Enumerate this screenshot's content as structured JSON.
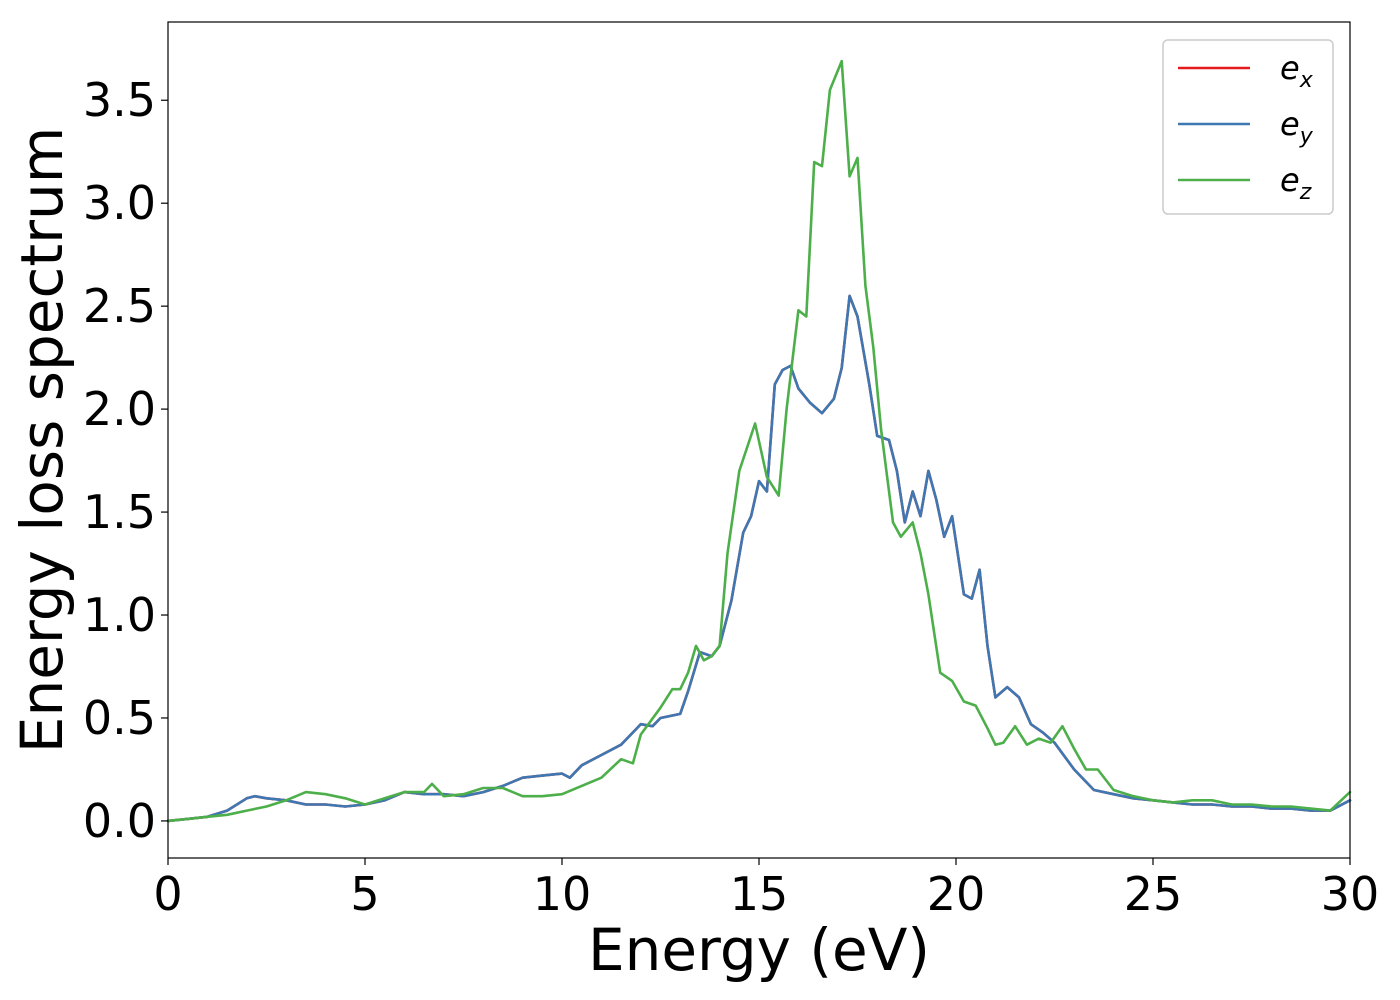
{
  "chart_data": {
    "type": "line",
    "title": "",
    "xlabel": "Energy (eV)",
    "ylabel": "Energy loss spectrum",
    "xlim": [
      0,
      30
    ],
    "ylim": [
      -0.18,
      3.88
    ],
    "xticks": [
      0,
      5,
      10,
      15,
      20,
      25,
      30
    ],
    "xtick_labels": [
      "0",
      "5",
      "10",
      "15",
      "20",
      "25",
      "30"
    ],
    "yticks": [
      0.0,
      0.5,
      1.0,
      1.5,
      2.0,
      2.5,
      3.0,
      3.5
    ],
    "ytick_labels": [
      "0.0",
      "0.5",
      "1.0",
      "1.5",
      "2.0",
      "2.5",
      "3.0",
      "3.5"
    ],
    "grid": false,
    "legend": {
      "placement": "top-right"
    },
    "series": [
      {
        "name": "e_x",
        "label_main": "e",
        "label_sub": "x",
        "color": "#e41a1c",
        "x": [
          0,
          0.5,
          1,
          1.5,
          2,
          2.2,
          2.5,
          3,
          3.5,
          4,
          4.5,
          5,
          5.5,
          6,
          6.5,
          7,
          7.5,
          8,
          8.5,
          9,
          9.5,
          10,
          10.2,
          10.5,
          11,
          11.5,
          12,
          12.3,
          12.5,
          13,
          13.2,
          13.5,
          13.8,
          14,
          14.3,
          14.6,
          14.8,
          15,
          15.2,
          15.4,
          15.6,
          15.8,
          16,
          16.3,
          16.6,
          16.9,
          17.1,
          17.3,
          17.5,
          17.8,
          18,
          18.3,
          18.5,
          18.7,
          18.9,
          19.1,
          19.3,
          19.5,
          19.7,
          19.9,
          20.2,
          20.4,
          20.6,
          20.8,
          21,
          21.3,
          21.6,
          21.9,
          22.2,
          22.5,
          23,
          23.5,
          24,
          24.5,
          25,
          25.5,
          26,
          26.5,
          27,
          27.5,
          28,
          28.5,
          29,
          29.5,
          30
        ],
        "y": [
          0,
          0.01,
          0.02,
          0.05,
          0.11,
          0.12,
          0.11,
          0.1,
          0.08,
          0.08,
          0.07,
          0.08,
          0.1,
          0.14,
          0.13,
          0.13,
          0.12,
          0.14,
          0.17,
          0.21,
          0.22,
          0.23,
          0.21,
          0.27,
          0.32,
          0.37,
          0.47,
          0.46,
          0.5,
          0.52,
          0.63,
          0.82,
          0.8,
          0.85,
          1.07,
          1.4,
          1.48,
          1.65,
          1.6,
          2.12,
          2.19,
          2.21,
          2.1,
          2.03,
          1.98,
          2.05,
          2.2,
          2.55,
          2.45,
          2.12,
          1.87,
          1.85,
          1.7,
          1.45,
          1.6,
          1.48,
          1.7,
          1.56,
          1.38,
          1.48,
          1.1,
          1.08,
          1.22,
          0.85,
          0.6,
          0.65,
          0.6,
          0.47,
          0.43,
          0.38,
          0.25,
          0.15,
          0.13,
          0.11,
          0.1,
          0.09,
          0.08,
          0.08,
          0.07,
          0.07,
          0.06,
          0.06,
          0.05,
          0.05,
          0.1
        ]
      },
      {
        "name": "e_y",
        "label_main": "e",
        "label_sub": "y",
        "color": "#3e78b2",
        "x": [
          0,
          0.5,
          1,
          1.5,
          2,
          2.2,
          2.5,
          3,
          3.5,
          4,
          4.5,
          5,
          5.5,
          6,
          6.5,
          7,
          7.5,
          8,
          8.5,
          9,
          9.5,
          10,
          10.2,
          10.5,
          11,
          11.5,
          12,
          12.3,
          12.5,
          13,
          13.2,
          13.5,
          13.8,
          14,
          14.3,
          14.6,
          14.8,
          15,
          15.2,
          15.4,
          15.6,
          15.8,
          16,
          16.3,
          16.6,
          16.9,
          17.1,
          17.3,
          17.5,
          17.8,
          18,
          18.3,
          18.5,
          18.7,
          18.9,
          19.1,
          19.3,
          19.5,
          19.7,
          19.9,
          20.2,
          20.4,
          20.6,
          20.8,
          21,
          21.3,
          21.6,
          21.9,
          22.2,
          22.5,
          23,
          23.5,
          24,
          24.5,
          25,
          25.5,
          26,
          26.5,
          27,
          27.5,
          28,
          28.5,
          29,
          29.5,
          30
        ],
        "y": [
          0,
          0.01,
          0.02,
          0.05,
          0.11,
          0.12,
          0.11,
          0.1,
          0.08,
          0.08,
          0.07,
          0.08,
          0.1,
          0.14,
          0.13,
          0.13,
          0.12,
          0.14,
          0.17,
          0.21,
          0.22,
          0.23,
          0.21,
          0.27,
          0.32,
          0.37,
          0.47,
          0.46,
          0.5,
          0.52,
          0.63,
          0.82,
          0.8,
          0.85,
          1.07,
          1.4,
          1.48,
          1.65,
          1.6,
          2.12,
          2.19,
          2.21,
          2.1,
          2.03,
          1.98,
          2.05,
          2.2,
          2.55,
          2.45,
          2.12,
          1.87,
          1.85,
          1.7,
          1.45,
          1.6,
          1.48,
          1.7,
          1.56,
          1.38,
          1.48,
          1.1,
          1.08,
          1.22,
          0.85,
          0.6,
          0.65,
          0.6,
          0.47,
          0.43,
          0.38,
          0.25,
          0.15,
          0.13,
          0.11,
          0.1,
          0.09,
          0.08,
          0.08,
          0.07,
          0.07,
          0.06,
          0.06,
          0.05,
          0.05,
          0.1
        ]
      },
      {
        "name": "e_z",
        "label_main": "e",
        "label_sub": "z",
        "color": "#4daf4a",
        "x": [
          0,
          0.5,
          1,
          1.5,
          2,
          2.5,
          3,
          3.5,
          4,
          4.5,
          5,
          5.5,
          6,
          6.5,
          6.7,
          7,
          7.5,
          8,
          8.5,
          9,
          9.5,
          10,
          10.5,
          11,
          11.5,
          11.8,
          12,
          12.5,
          12.8,
          13,
          13.2,
          13.4,
          13.6,
          13.8,
          14,
          14.2,
          14.5,
          14.9,
          15.2,
          15.5,
          15.7,
          16,
          16.2,
          16.4,
          16.6,
          16.8,
          17.1,
          17.3,
          17.5,
          17.7,
          17.9,
          18.1,
          18.4,
          18.6,
          18.9,
          19.1,
          19.3,
          19.6,
          19.9,
          20.2,
          20.5,
          20.8,
          21,
          21.2,
          21.5,
          21.8,
          22.1,
          22.4,
          22.7,
          23,
          23.3,
          23.6,
          24,
          24.5,
          25,
          25.5,
          26,
          26.5,
          27,
          27.5,
          28,
          28.5,
          29,
          29.5,
          30
        ],
        "y": [
          0,
          0.01,
          0.02,
          0.03,
          0.05,
          0.07,
          0.1,
          0.14,
          0.13,
          0.11,
          0.08,
          0.11,
          0.14,
          0.14,
          0.18,
          0.12,
          0.13,
          0.16,
          0.16,
          0.12,
          0.12,
          0.13,
          0.17,
          0.21,
          0.3,
          0.28,
          0.42,
          0.55,
          0.64,
          0.64,
          0.72,
          0.85,
          0.78,
          0.8,
          0.85,
          1.3,
          1.7,
          1.93,
          1.67,
          1.58,
          2.0,
          2.48,
          2.45,
          3.2,
          3.18,
          3.55,
          3.69,
          3.13,
          3.22,
          2.6,
          2.3,
          1.9,
          1.45,
          1.38,
          1.45,
          1.3,
          1.1,
          0.72,
          0.68,
          0.58,
          0.56,
          0.45,
          0.37,
          0.38,
          0.46,
          0.37,
          0.4,
          0.38,
          0.46,
          0.35,
          0.25,
          0.25,
          0.15,
          0.12,
          0.1,
          0.09,
          0.1,
          0.1,
          0.08,
          0.08,
          0.07,
          0.07,
          0.06,
          0.05,
          0.14
        ]
      }
    ]
  }
}
